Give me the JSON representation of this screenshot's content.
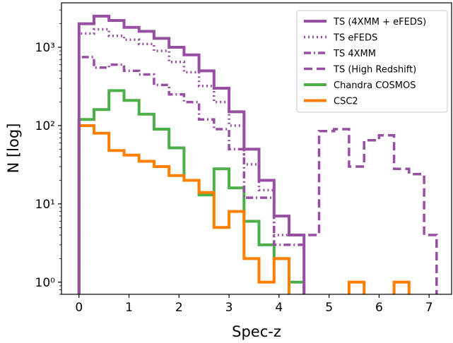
{
  "chart_data": {
    "type": "histogram-step",
    "xlabel": "Spec-z",
    "ylabel": "N [log]",
    "xlim": [
      -0.35,
      7.45
    ],
    "ylim": [
      0.7,
      3700
    ],
    "yscale": "log",
    "xticks": [
      0,
      1,
      2,
      3,
      4,
      5,
      6,
      7
    ],
    "xtick_labels": [
      "0",
      "1",
      "2",
      "3",
      "4",
      "5",
      "6",
      "7"
    ],
    "yticks": [
      1,
      10,
      100,
      1000
    ],
    "ytick_labels": [
      "10⁰",
      "10¹",
      "10²",
      "10³"
    ],
    "grid": false,
    "legend_position": "top-right",
    "series": [
      {
        "name": "TS (4XMM + eFEDS)",
        "color": "#984ea3",
        "linestyle": "solid",
        "edges": [
          0,
          0.3,
          0.6,
          0.9,
          1.2,
          1.5,
          1.8,
          2.1,
          2.4,
          2.7,
          3.0,
          3.3,
          3.6,
          3.9,
          4.2,
          4.5
        ],
        "counts": [
          2000,
          2500,
          2200,
          1800,
          1600,
          1300,
          1000,
          800,
          500,
          300,
          150,
          50,
          20,
          7,
          4
        ]
      },
      {
        "name": "TS eFEDS",
        "color": "#984ea3",
        "linestyle": "dotted",
        "edges": [
          0,
          0.3,
          0.6,
          0.9,
          1.2,
          1.5,
          1.8,
          2.1,
          2.4,
          2.7,
          3.0,
          3.3,
          3.6,
          3.9,
          4.2,
          4.5
        ],
        "counts": [
          1500,
          1700,
          1400,
          1250,
          1100,
          900,
          650,
          480,
          320,
          200,
          100,
          32,
          15,
          4,
          4
        ]
      },
      {
        "name": "TS 4XMM",
        "color": "#984ea3",
        "linestyle": "dashdot",
        "edges": [
          0,
          0.3,
          0.6,
          0.9,
          1.2,
          1.5,
          1.8,
          2.1,
          2.4,
          2.7,
          3.0,
          3.3,
          3.6,
          3.9,
          4.2,
          4.5
        ],
        "counts": [
          750,
          550,
          600,
          500,
          450,
          330,
          250,
          200,
          120,
          90,
          50,
          12,
          12,
          3,
          3
        ]
      },
      {
        "name": "TS (High Redshift)",
        "color": "#984ea3",
        "linestyle": "dashed",
        "edges": [
          4.5,
          4.8,
          5.1,
          5.4,
          5.7,
          6.0,
          6.3,
          6.6,
          6.9,
          7.15
        ],
        "counts": [
          4,
          85,
          90,
          30,
          65,
          75,
          28,
          24,
          4
        ]
      },
      {
        "name": "Chandra COSMOS",
        "color": "#4daf4a",
        "linestyle": "solid",
        "edges": [
          0,
          0.3,
          0.6,
          0.9,
          1.2,
          1.5,
          1.8,
          2.1,
          2.4,
          2.7,
          3.0,
          3.3,
          3.6,
          3.9,
          4.2,
          4.5
        ],
        "counts": [
          120,
          160,
          280,
          210,
          140,
          90,
          52,
          20,
          13,
          28,
          16,
          6,
          3,
          2,
          1
        ]
      },
      {
        "name": "CSC2",
        "color": "#ff7f00",
        "linestyle": "solid",
        "edges": [
          0,
          0.3,
          0.6,
          0.9,
          1.2,
          1.5,
          1.8,
          2.1,
          2.4,
          2.7,
          3.0,
          3.3,
          3.6,
          3.9,
          4.2
        ],
        "counts": [
          100,
          80,
          48,
          42,
          35,
          30,
          23,
          20,
          14,
          5,
          8,
          2,
          1,
          2
        ],
        "extra_bins": [
          {
            "edges": [
              5.4,
              5.7
            ],
            "count": 1
          },
          {
            "edges": [
              6.3,
              6.6
            ],
            "count": 1
          }
        ]
      }
    ]
  }
}
